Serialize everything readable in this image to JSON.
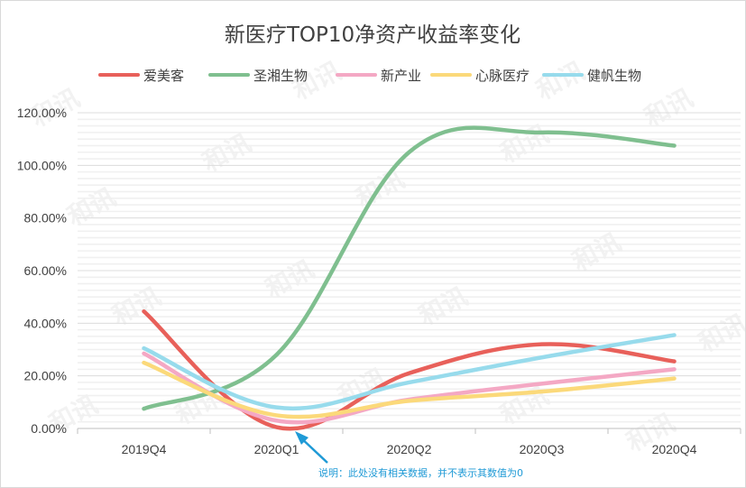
{
  "chart_data": {
    "type": "line",
    "title": "新医疗TOP10净资产收益率变化",
    "categories": [
      "2019Q4",
      "2020Q1",
      "2020Q2",
      "2020Q3",
      "2020Q4"
    ],
    "yticks": [
      "0.00%",
      "20.00%",
      "40.00%",
      "60.00%",
      "80.00%",
      "100.00%",
      "120.00%"
    ],
    "ylim": [
      0,
      120
    ],
    "series": [
      {
        "name": "爱美客",
        "color": "#e8605a",
        "values": [
          44.5,
          null,
          21,
          32,
          25.5
        ]
      },
      {
        "name": "圣湘生物",
        "color": "#7fbf8f",
        "values": [
          7.5,
          null,
          105,
          112.5,
          107.5
        ]
      },
      {
        "name": "新产业",
        "color": "#f4a8c4",
        "values": [
          28.5,
          null,
          11,
          17,
          22.5
        ]
      },
      {
        "name": "心脉医疗",
        "color": "#fbd97a",
        "values": [
          25,
          null,
          10.5,
          14,
          19
        ]
      },
      {
        "name": "健帆生物",
        "color": "#97dbec",
        "values": [
          30.5,
          null,
          17.5,
          27,
          35.5
        ]
      }
    ],
    "legend_position": "top",
    "grid": true,
    "annotation": "说明：此处没有相关数据，并不表示其数值为0"
  },
  "watermark": "和讯"
}
